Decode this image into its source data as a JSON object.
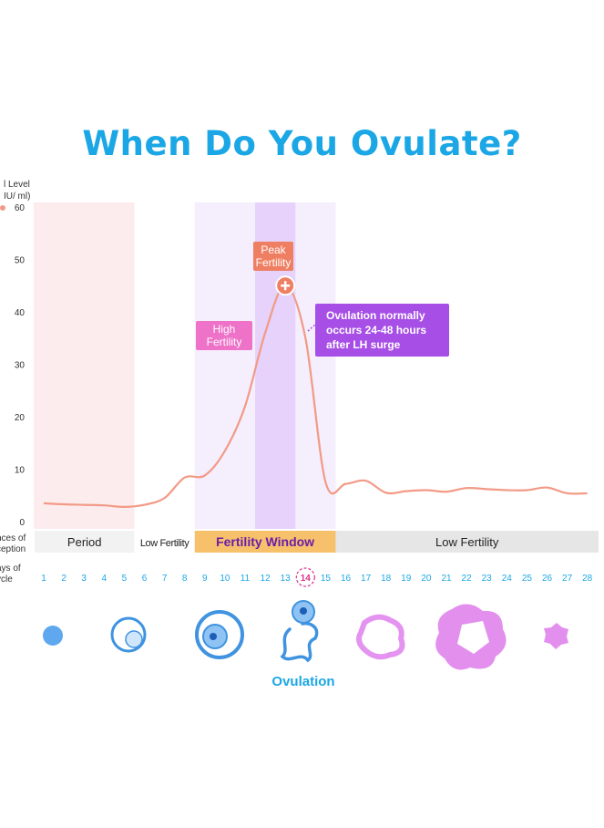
{
  "title": "When Do You Ovulate?",
  "colors": {
    "title": "#1ba7e5",
    "curve": "#f29a86",
    "period_band": "#fdecee",
    "fertile_band": "#f5eefc",
    "peak_band": "#e6d2fb",
    "peak_box": "#ef7f62",
    "high_box": "#ee72c8",
    "ovulation_box": "#a64ee6",
    "fertility_window_bg": "#f7c06b",
    "fertility_window_text": "#6a1ea8",
    "day_label": "#1ba7e5",
    "ovulation_label": "#1ba7e5"
  },
  "chart_data": {
    "type": "line",
    "ylabel_lines": [
      "l Level",
      "IU/ ml)"
    ],
    "ylim": [
      0,
      60
    ],
    "yticks": [
      0,
      10,
      20,
      30,
      40,
      50,
      60
    ],
    "x_label_lines": [
      "ays of",
      "ycle"
    ],
    "xlim": [
      1,
      28
    ],
    "days": [
      1,
      2,
      3,
      4,
      5,
      6,
      7,
      8,
      9,
      10,
      11,
      12,
      13,
      14,
      15,
      16,
      17,
      18,
      19,
      20,
      21,
      22,
      23,
      24,
      25,
      26,
      27,
      28
    ],
    "highlighted_day": 14,
    "series": [
      {
        "x": [
          1,
          2,
          3,
          4,
          5,
          6,
          7,
          8,
          9,
          10,
          11,
          12,
          13,
          14,
          15,
          16,
          17,
          18,
          19,
          20,
          21,
          22,
          23,
          24,
          25,
          26,
          27,
          28
        ],
        "y": [
          3.5,
          3.3,
          3.2,
          3.1,
          2.8,
          3.2,
          4.5,
          8.4,
          8.8,
          13.5,
          22,
          36,
          45,
          35,
          7.5,
          7.2,
          7.8,
          5.5,
          5.8,
          6.0,
          5.7,
          6.4,
          6.2,
          6.0,
          6.0,
          6.5,
          5.4,
          5.4
        ]
      }
    ],
    "bands": [
      {
        "id": "period",
        "from": 0.5,
        "to": 5.5
      },
      {
        "id": "fertile",
        "from": 8.5,
        "to": 15.5
      },
      {
        "id": "peak",
        "from": 11.5,
        "to": 13.5
      }
    ],
    "peak_marker": {
      "x": 13,
      "y": 45
    },
    "annotations": {
      "peak": [
        "Peak",
        "Fertility"
      ],
      "high": [
        "High",
        "Fertility"
      ],
      "ovulation": [
        "Ovulation normally",
        "occurs 24-48 hours",
        "after LH surge"
      ]
    },
    "chance_row": {
      "label_lines": [
        "nces of",
        "ception"
      ],
      "segments": [
        {
          "label": "Period",
          "from": 0.5,
          "to": 5.5
        },
        {
          "label": "Low Fertility",
          "from": 5.5,
          "to": 8.5
        },
        {
          "label": "Fertility Window",
          "from": 8.5,
          "to": 15.5
        },
        {
          "label": "Low Fertility",
          "from": 15.5,
          "to": 28.5
        }
      ]
    }
  },
  "ovulation_label": "Ovulation"
}
